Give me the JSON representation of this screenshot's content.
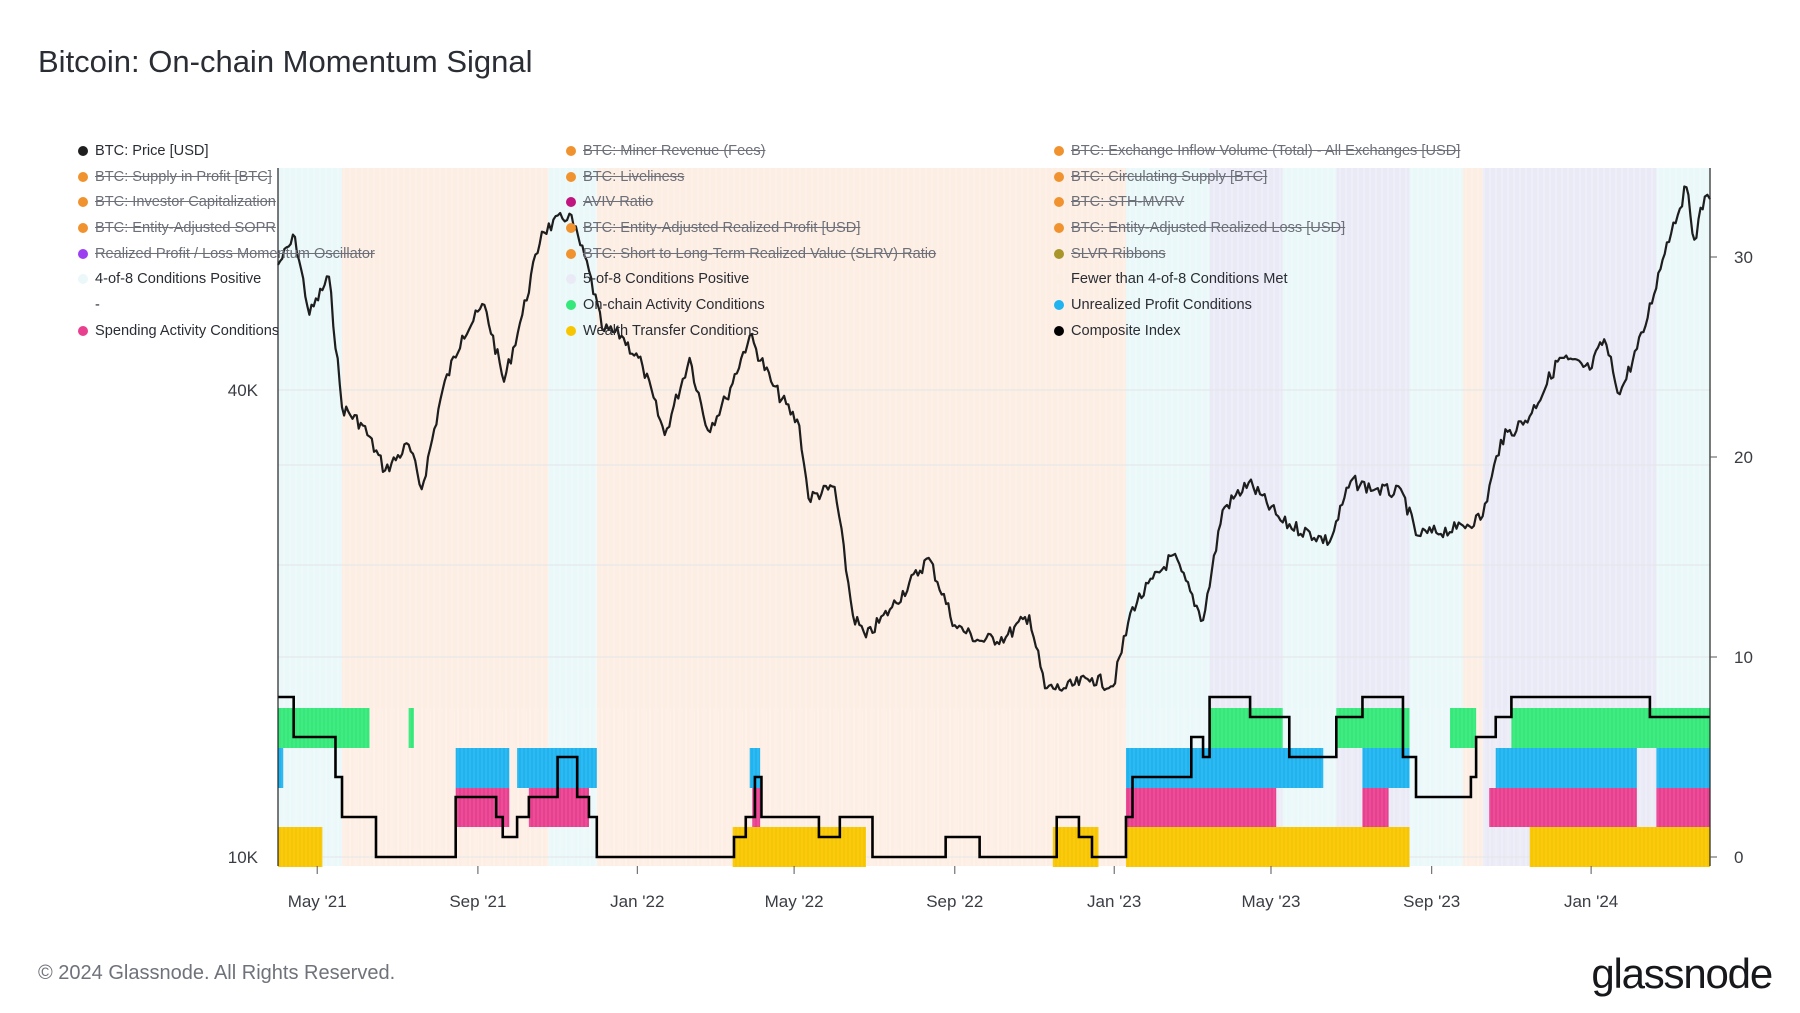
{
  "title": "Bitcoin: On-chain Momentum Signal",
  "legend": [
    {
      "label": "BTC: Price [USD]",
      "color": "#1e1e1e",
      "hidden": false
    },
    {
      "label": "BTC: Miner Revenue (Fees)",
      "color": "#f0922e",
      "hidden": true
    },
    {
      "label": "BTC: Exchange Inflow Volume (Total) - All Exchanges [USD]",
      "color": "#f0922e",
      "hidden": true
    },
    {
      "label": "BTC: Supply in Profit [BTC]",
      "color": "#f0922e",
      "hidden": true
    },
    {
      "label": "BTC: Liveliness",
      "color": "#f0922e",
      "hidden": true
    },
    {
      "label": "BTC: Circulating Supply [BTC]",
      "color": "#f0922e",
      "hidden": true
    },
    {
      "label": "BTC: Investor Capitalization",
      "color": "#f0922e",
      "hidden": true
    },
    {
      "label": "AVIV Ratio",
      "color": "#c0147e",
      "hidden": true
    },
    {
      "label": "BTC: STH-MVRV",
      "color": "#f0922e",
      "hidden": true
    },
    {
      "label": "BTC: Entity-Adjusted SOPR",
      "color": "#f0922e",
      "hidden": true
    },
    {
      "label": "BTC: Entity-Adjusted Realized Profit [USD]",
      "color": "#f0922e",
      "hidden": true
    },
    {
      "label": "BTC: Entity-Adjusted Realized Loss [USD]",
      "color": "#f0922e",
      "hidden": true
    },
    {
      "label": "Realized Profit / Loss Momentum Oscillator",
      "color": "#9b3ff0",
      "hidden": true
    },
    {
      "label": "BTC: Short to Long-Term Realized Value (SLRV) Ratio",
      "color": "#f0922e",
      "hidden": true
    },
    {
      "label": "SLVR Ribbons",
      "color": "#a8962a",
      "hidden": true
    },
    {
      "label": "4-of-8 Conditions Positive",
      "color": "#eaf8fa",
      "hidden": false
    },
    {
      "label": "5-of-8 Conditions Positive",
      "color": "#eaeaf6",
      "hidden": false
    },
    {
      "label": "Fewer than 4-of-8 Conditions Met",
      "color": "#fdeee4",
      "hidden": false
    },
    {
      "label": "-",
      "color": "#ffffff",
      "hidden": false
    },
    {
      "label": "On-chain Activity Conditions",
      "color": "#34e87a",
      "hidden": false
    },
    {
      "label": "Unrealized Profit Conditions",
      "color": "#1fb3f0",
      "hidden": false
    },
    {
      "label": "Spending Activity Conditions",
      "color": "#e83f8f",
      "hidden": false
    },
    {
      "label": "Wealth Transfer Conditions",
      "color": "#f7c600",
      "hidden": false
    },
    {
      "label": "Composite Index",
      "color": "#000000",
      "hidden": false
    }
  ],
  "axes": {
    "x_ticks": [
      "May '21",
      "Sep '21",
      "Jan '22",
      "May '22",
      "Sep '22",
      "Jan '23",
      "May '23",
      "Sep '23",
      "Jan '24"
    ],
    "y_left_ticks": [
      "40K",
      "10K"
    ],
    "y_right_ticks": [
      "30",
      "20",
      "10",
      "0"
    ]
  },
  "chart_data": {
    "type": "line",
    "title": "Bitcoin: On-chain Momentum Signal",
    "x_range": [
      "2021-04-01",
      "2024-04-01"
    ],
    "y_left": {
      "label": "BTC: Price [USD]",
      "scale": "log",
      "ticks": [
        10000,
        40000
      ]
    },
    "y_right": {
      "label": "Composite Index",
      "range": [
        0,
        34
      ],
      "ticks": [
        0,
        10,
        20,
        30
      ]
    },
    "series": [
      {
        "name": "BTC: Price [USD]",
        "color": "#1e1e1e",
        "points": [
          [
            "2021-04-01",
            58000
          ],
          [
            "2021-04-14",
            63000
          ],
          [
            "2021-04-25",
            50000
          ],
          [
            "2021-05-10",
            56000
          ],
          [
            "2021-05-20",
            38000
          ],
          [
            "2021-06-05",
            36000
          ],
          [
            "2021-06-22",
            31500
          ],
          [
            "2021-07-10",
            34000
          ],
          [
            "2021-07-20",
            29800
          ],
          [
            "2021-08-05",
            40000
          ],
          [
            "2021-08-20",
            47000
          ],
          [
            "2021-09-06",
            51500
          ],
          [
            "2021-09-21",
            41000
          ],
          [
            "2021-10-05",
            50000
          ],
          [
            "2021-10-20",
            64000
          ],
          [
            "2021-11-10",
            67500
          ],
          [
            "2021-11-25",
            57000
          ],
          [
            "2021-12-05",
            48000
          ],
          [
            "2021-12-20",
            47000
          ],
          [
            "2022-01-05",
            43000
          ],
          [
            "2022-01-22",
            35000
          ],
          [
            "2022-02-10",
            44000
          ],
          [
            "2022-02-24",
            35500
          ],
          [
            "2022-03-10",
            39000
          ],
          [
            "2022-03-28",
            47000
          ],
          [
            "2022-04-15",
            40500
          ],
          [
            "2022-05-05",
            36000
          ],
          [
            "2022-05-12",
            29000
          ],
          [
            "2022-06-01",
            30000
          ],
          [
            "2022-06-15",
            20500
          ],
          [
            "2022-06-25",
            19200
          ],
          [
            "2022-07-15",
            21000
          ],
          [
            "2022-08-12",
            24300
          ],
          [
            "2022-09-01",
            19900
          ],
          [
            "2022-09-20",
            19000
          ],
          [
            "2022-10-10",
            19200
          ],
          [
            "2022-10-28",
            20500
          ],
          [
            "2022-11-09",
            16500
          ],
          [
            "2022-11-25",
            16500
          ],
          [
            "2022-12-15",
            17000
          ],
          [
            "2022-12-31",
            16600
          ],
          [
            "2023-01-15",
            21000
          ],
          [
            "2023-02-15",
            24500
          ],
          [
            "2023-03-10",
            20200
          ],
          [
            "2023-03-25",
            28000
          ],
          [
            "2023-04-14",
            30400
          ],
          [
            "2023-05-10",
            27000
          ],
          [
            "2023-06-15",
            25500
          ],
          [
            "2023-07-01",
            30500
          ],
          [
            "2023-07-20",
            29800
          ],
          [
            "2023-08-10",
            29400
          ],
          [
            "2023-08-20",
            26000
          ],
          [
            "2023-09-20",
            26500
          ],
          [
            "2023-10-10",
            27500
          ],
          [
            "2023-10-24",
            34500
          ],
          [
            "2023-11-15",
            37000
          ],
          [
            "2023-12-08",
            44000
          ],
          [
            "2023-12-31",
            42500
          ],
          [
            "2024-01-11",
            46500
          ],
          [
            "2024-01-23",
            39500
          ],
          [
            "2024-02-10",
            47500
          ],
          [
            "2024-02-28",
            62000
          ],
          [
            "2024-03-14",
            73000
          ],
          [
            "2024-03-20",
            62500
          ],
          [
            "2024-03-28",
            71000
          ],
          [
            "2024-04-01",
            70500
          ]
        ]
      },
      {
        "name": "Composite Index",
        "color": "#000000",
        "points": [
          [
            "2021-04-01",
            8
          ],
          [
            "2021-04-12",
            8
          ],
          [
            "2021-04-13",
            6
          ],
          [
            "2021-05-10",
            6
          ],
          [
            "2021-05-15",
            4
          ],
          [
            "2021-05-20",
            2
          ],
          [
            "2021-06-10",
            2
          ],
          [
            "2021-06-15",
            0
          ],
          [
            "2021-08-10",
            0
          ],
          [
            "2021-08-15",
            3
          ],
          [
            "2021-09-10",
            3
          ],
          [
            "2021-09-15",
            2
          ],
          [
            "2021-09-20",
            1
          ],
          [
            "2021-10-01",
            2
          ],
          [
            "2021-10-10",
            3
          ],
          [
            "2021-10-25",
            3
          ],
          [
            "2021-11-01",
            5
          ],
          [
            "2021-11-12",
            5
          ],
          [
            "2021-11-16",
            3
          ],
          [
            "2021-11-25",
            2
          ],
          [
            "2021-12-01",
            0
          ],
          [
            "2022-03-12",
            0
          ],
          [
            "2022-03-16",
            1
          ],
          [
            "2022-03-25",
            2
          ],
          [
            "2022-04-01",
            4
          ],
          [
            "2022-04-06",
            2
          ],
          [
            "2022-05-15",
            2
          ],
          [
            "2022-05-20",
            1
          ],
          [
            "2022-06-05",
            2
          ],
          [
            "2022-06-25",
            2
          ],
          [
            "2022-06-30",
            0
          ],
          [
            "2022-08-20",
            0
          ],
          [
            "2022-08-25",
            1
          ],
          [
            "2022-09-18",
            1
          ],
          [
            "2022-09-20",
            0
          ],
          [
            "2022-11-15",
            0
          ],
          [
            "2022-11-18",
            2
          ],
          [
            "2022-12-05",
            1
          ],
          [
            "2022-12-15",
            0
          ],
          [
            "2023-01-05",
            0
          ],
          [
            "2023-01-10",
            2
          ],
          [
            "2023-01-15",
            4
          ],
          [
            "2023-02-20",
            4
          ],
          [
            "2023-03-01",
            6
          ],
          [
            "2023-03-10",
            5
          ],
          [
            "2023-03-15",
            8
          ],
          [
            "2023-04-05",
            8
          ],
          [
            "2023-04-15",
            7
          ],
          [
            "2023-05-05",
            7
          ],
          [
            "2023-05-15",
            5
          ],
          [
            "2023-06-10",
            5
          ],
          [
            "2023-06-20",
            7
          ],
          [
            "2023-07-10",
            8
          ],
          [
            "2023-07-30",
            8
          ],
          [
            "2023-08-10",
            5
          ],
          [
            "2023-08-20",
            3
          ],
          [
            "2023-09-20",
            3
          ],
          [
            "2023-10-01",
            4
          ],
          [
            "2023-10-05",
            6
          ],
          [
            "2023-10-20",
            7
          ],
          [
            "2023-11-01",
            8
          ],
          [
            "2024-02-05",
            8
          ],
          [
            "2024-02-15",
            7
          ],
          [
            "2024-04-01",
            7
          ]
        ]
      }
    ],
    "background_regions": [
      {
        "name": "4-of-8 Conditions Positive",
        "color": "#eaf8fa",
        "ranges": [
          [
            "2021-04-01",
            "2021-05-20"
          ],
          [
            "2021-10-25",
            "2021-12-01"
          ],
          [
            "2023-01-10",
            "2023-03-15"
          ],
          [
            "2023-05-10",
            "2023-06-20"
          ],
          [
            "2023-08-15",
            "2023-09-25"
          ],
          [
            "2024-02-20",
            "2024-04-01"
          ]
        ]
      },
      {
        "name": "5-of-8 Conditions Positive",
        "color": "#eaeaf6",
        "ranges": [
          [
            "2023-03-15",
            "2023-05-10"
          ],
          [
            "2023-06-20",
            "2023-08-15"
          ],
          [
            "2023-10-10",
            "2024-02-20"
          ]
        ]
      },
      {
        "name": "Fewer than 4-of-8 Conditions Met",
        "color": "#fdeee4",
        "ranges": [
          [
            "2021-05-20",
            "2021-10-25"
          ],
          [
            "2021-12-01",
            "2023-01-10"
          ],
          [
            "2023-09-25",
            "2023-10-10"
          ]
        ]
      }
    ],
    "condition_bands": [
      {
        "name": "On-chain Activity Conditions",
        "color": "#34e87a",
        "active_ranges": [
          [
            "2021-04-01",
            "2021-06-10"
          ],
          [
            "2021-07-10",
            "2021-07-14"
          ],
          [
            "2023-03-15",
            "2023-05-10"
          ],
          [
            "2023-06-20",
            "2023-08-15"
          ],
          [
            "2023-09-15",
            "2023-10-05"
          ],
          [
            "2023-11-01",
            "2024-04-01"
          ]
        ]
      },
      {
        "name": "Unrealized Profit Conditions",
        "color": "#1fb3f0",
        "active_ranges": [
          [
            "2021-04-01",
            "2021-04-05"
          ],
          [
            "2021-08-15",
            "2021-09-25"
          ],
          [
            "2021-10-01",
            "2021-12-01"
          ],
          [
            "2022-03-28",
            "2022-04-05"
          ],
          [
            "2023-01-10",
            "2023-06-10"
          ],
          [
            "2023-07-10",
            "2023-08-15"
          ],
          [
            "2023-10-20",
            "2024-02-05"
          ],
          [
            "2024-02-20",
            "2024-04-01"
          ]
        ]
      },
      {
        "name": "Spending Activity Conditions",
        "color": "#e83f8f",
        "active_ranges": [
          [
            "2021-08-15",
            "2021-09-25"
          ],
          [
            "2021-10-10",
            "2021-11-25"
          ],
          [
            "2022-03-30",
            "2022-04-05"
          ],
          [
            "2023-01-10",
            "2023-05-05"
          ],
          [
            "2023-07-10",
            "2023-07-30"
          ],
          [
            "2023-10-15",
            "2024-02-05"
          ],
          [
            "2024-02-20",
            "2024-04-01"
          ]
        ]
      },
      {
        "name": "Wealth Transfer Conditions",
        "color": "#f7c600",
        "active_ranges": [
          [
            "2021-04-01",
            "2021-05-05"
          ],
          [
            "2022-03-15",
            "2022-06-25"
          ],
          [
            "2022-11-15",
            "2022-12-20"
          ],
          [
            "2023-01-10",
            "2023-08-15"
          ],
          [
            "2023-11-15",
            "2024-04-01"
          ]
        ]
      }
    ]
  },
  "footer": {
    "copyright": "© 2024 Glassnode. All Rights Reserved.",
    "brand": "glassnode"
  }
}
